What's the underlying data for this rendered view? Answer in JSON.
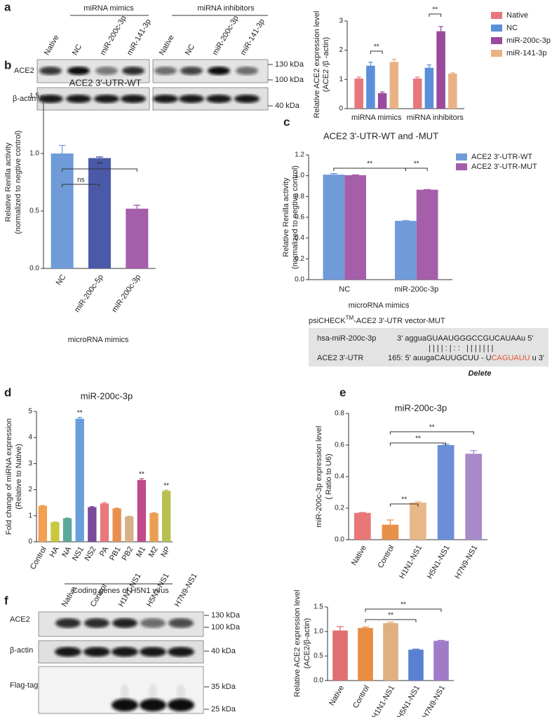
{
  "panel_labels": [
    "a",
    "b",
    "c",
    "d",
    "e",
    "f"
  ],
  "blots": [
    {
      "headers": [
        "miRNA  mimics",
        "miRNA inhibitors"
      ],
      "lanes": [
        "Native",
        "NC",
        "miR-200c-3p",
        "miR-141-3p",
        "Native",
        "NC",
        "miR-200c-3p",
        "miR-141-3p"
      ],
      "rows": [
        "ACE2",
        "β-actin"
      ],
      "markers": [
        "130 kDa",
        "100 kDa",
        "40 kDa"
      ]
    },
    {
      "lanes": [
        "Native",
        "Control",
        "H1N1-NS1",
        "H5N1-NS1",
        "H7N9-NS1"
      ],
      "rows": [
        "ACE2",
        "β-actin",
        "Flag-tag"
      ],
      "markers": [
        "130 kDa",
        "100 kDa",
        "40 kDa",
        "35 kDa",
        "25 kDa"
      ]
    }
  ],
  "sequence_box": {
    "title": "psiCHECK",
    "title_sup": "TM",
    "title_rest": "-ACE2 3'-UTR vector-MUT",
    "mirna_label": "hsa-miR-200c-3p",
    "mirna_seq": "3' agguaGUAAUGGGCCGUCAUAAu 5'",
    "pairing": "| | | | : | : :   | | | | | | |",
    "utr_label": "ACE2 3'-UTR",
    "utr_seq": "165: 5' auugaCAUUGCUU - U",
    "utr_deleted": "CAGUAUU",
    "utr_end": "u 3'",
    "deleted_note": "Delete"
  },
  "chart_data": [
    {
      "type": "bar",
      "ylabel": [
        "Relative ACE2 expression level",
        "(ACE2 /β -actin)"
      ],
      "categories": [
        "miRNA mimics",
        "miRNA inhibitors"
      ],
      "series": [
        {
          "name": "Native",
          "color": "#e8777b",
          "values": [
            1.03,
            1.03
          ],
          "errors": [
            0.05,
            0.05
          ]
        },
        {
          "name": "NC",
          "color": "#5b8fd9",
          "values": [
            1.47,
            1.4
          ],
          "errors": [
            0.12,
            0.1
          ]
        },
        {
          "name": "miR-200c-3p",
          "color": "#9a4a9e",
          "values": [
            0.53,
            2.65
          ],
          "errors": [
            0.04,
            0.16
          ]
        },
        {
          "name": "miR-141-3p",
          "color": "#e9b285",
          "values": [
            1.6,
            1.2
          ],
          "errors": [
            0.09,
            0.03
          ]
        }
      ],
      "ylim": [
        0,
        3
      ],
      "yticks": [
        0,
        1,
        2,
        3
      ],
      "legend": "right",
      "annotations": [
        "**",
        "**"
      ]
    },
    {
      "type": "bar",
      "title": "ACE2 3'-UTR-WT",
      "ylabel": [
        "Relative Renilla activity",
        "(normalized to negtive control)"
      ],
      "xlabel": "microRNA mimics",
      "categories": [
        "NC",
        "miR-200c-5p",
        "miR-200c-3p"
      ],
      "values": [
        1.0,
        0.96,
        0.52
      ],
      "errors": [
        0.07,
        0.01,
        0.03
      ],
      "colors": [
        "#6f9bd8",
        "#4b5aa8",
        "#a55ea9"
      ],
      "ylim": [
        0,
        1.5
      ],
      "yticks": [
        {
          "value": 0,
          "label": "0.0"
        },
        0.5,
        {
          "value": 1,
          "label": "1.0"
        },
        1.5
      ],
      "annotations": [
        "ns",
        "**"
      ]
    },
    {
      "type": "bar",
      "title": "ACE2 3'-UTR-WT and -MUT",
      "ylabel": [
        "Relative Renilla activity",
        "(normalized to negtive control)"
      ],
      "xlabel": "microRNA mimics",
      "categories": [
        "NC",
        "miR-200c-3p"
      ],
      "series": [
        {
          "name": "ACE2 3'-UTR-WT",
          "color": "#6f9bd8",
          "values": [
            1.01,
            0.565
          ],
          "errors": [
            0.01,
            0.003
          ]
        },
        {
          "name": "ACE2 3'-UTR-MUT",
          "color": "#a55ea9",
          "values": [
            1.005,
            0.865
          ],
          "errors": [
            0.003,
            0.002
          ]
        }
      ],
      "ylim": [
        0,
        1.2
      ],
      "yticks": [
        {
          "value": 0,
          "label": "0.0"
        },
        0.2,
        0.4,
        0.6,
        0.8,
        {
          "value": 1,
          "label": "1.0"
        },
        1.2
      ],
      "legend": "right",
      "annotations": [
        "**",
        "**"
      ]
    },
    {
      "type": "bar",
      "title": "miR-200c-3p",
      "ylabel": [
        "Fold change of miRNA expression",
        "(Relative to Native)"
      ],
      "xlabel": "Coding genes of H5N1 virus",
      "categories": [
        "Control",
        "HA",
        "NA",
        "NS1",
        "NS2",
        "PA",
        "PB1",
        "PB2",
        "M1",
        "M2",
        "NP"
      ],
      "values": [
        1.38,
        0.75,
        0.9,
        4.72,
        1.33,
        1.47,
        1.28,
        0.97,
        2.37,
        1.1,
        1.95
      ],
      "errors": [
        0.01,
        0.01,
        0.01,
        0.05,
        0.02,
        0.03,
        0.01,
        0.01,
        0.05,
        0.01,
        0.03
      ],
      "colors": [
        "#f0a050",
        "#c8c840",
        "#5aa89a",
        "#6a9fdc",
        "#7a4a9c",
        "#e8787a",
        "#e89050",
        "#d8b088",
        "#c04a8a",
        "#e8a050",
        "#b8c050"
      ],
      "ylim": [
        0,
        5
      ],
      "yticks": [
        0,
        1,
        2,
        3,
        4,
        5
      ],
      "annotations": [
        "**",
        "**",
        "**"
      ]
    },
    {
      "type": "bar",
      "title": "miR-200c-3p",
      "ylabel": [
        "miR-200c-3p expression level",
        "( Ratio to U6)"
      ],
      "categories": [
        "Native",
        "Control",
        "H1N1-NS1",
        "H5N1-NS1",
        "H7N9-NS1"
      ],
      "values": [
        0.17,
        0.095,
        0.235,
        0.6,
        0.545
      ],
      "errors": [
        0.002,
        0.03,
        0.005,
        0.005,
        0.02
      ],
      "colors": [
        "#e87878",
        "#e89048",
        "#e8b888",
        "#6a8fd8",
        "#a88ac8"
      ],
      "ylim": [
        0,
        0.8
      ],
      "yticks": [
        {
          "value": 0,
          "label": "0.0"
        },
        0.2,
        0.4,
        0.6,
        0.8
      ],
      "annotations": [
        "**",
        "**",
        "**"
      ]
    },
    {
      "type": "bar",
      "ylabel": [
        "Relative ACE2 expression level",
        "(ACE2/β-actin)"
      ],
      "categories": [
        "Native",
        "Control",
        "H1N1-NS1",
        "H5N1-NS1",
        "H7N9-NS1"
      ],
      "values": [
        1.02,
        1.07,
        1.17,
        0.63,
        0.81
      ],
      "errors": [
        0.08,
        0.02,
        0.02,
        0.01,
        0.01
      ],
      "colors": [
        "#e07070",
        "#e88c40",
        "#e0b080",
        "#5a80d0",
        "#a07cc8"
      ],
      "ylim": [
        0,
        1.5
      ],
      "yticks": [
        {
          "value": 0,
          "label": "0.0"
        },
        0.5,
        {
          "value": 1,
          "label": "1.0"
        },
        1.5
      ],
      "annotations": [
        "**",
        "**"
      ]
    }
  ]
}
